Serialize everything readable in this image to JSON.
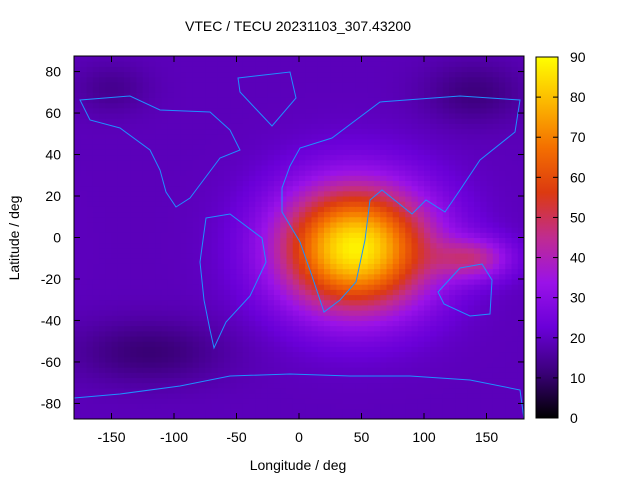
{
  "chart_data": {
    "type": "heatmap",
    "title": "VTEC / TECU 20231103_307.43200",
    "xlabel": "Longitude / deg",
    "ylabel": "Latitude / deg",
    "xlim": [
      -180,
      180
    ],
    "ylim": [
      -87.5,
      87.5
    ],
    "x_ticks": [
      -150,
      -100,
      -50,
      0,
      50,
      100,
      150
    ],
    "y_ticks": [
      -80,
      -60,
      -40,
      -20,
      0,
      20,
      40,
      60,
      80
    ],
    "colorbar": {
      "min": 0,
      "max": 90,
      "ticks": [
        0,
        10,
        20,
        30,
        40,
        50,
        60,
        70,
        80,
        90
      ],
      "palette": [
        "#000000",
        "#3a0078",
        "#6a00d8",
        "#9a12e8",
        "#c02c90",
        "#dc3a10",
        "#f47000",
        "#fcb800",
        "#ffff00"
      ]
    },
    "grid": false,
    "legend": "none",
    "coastline_color": "#1e90ff",
    "peak": {
      "lon": 45,
      "lat": -5,
      "vtec": 88
    },
    "background_vtec": 19
  }
}
